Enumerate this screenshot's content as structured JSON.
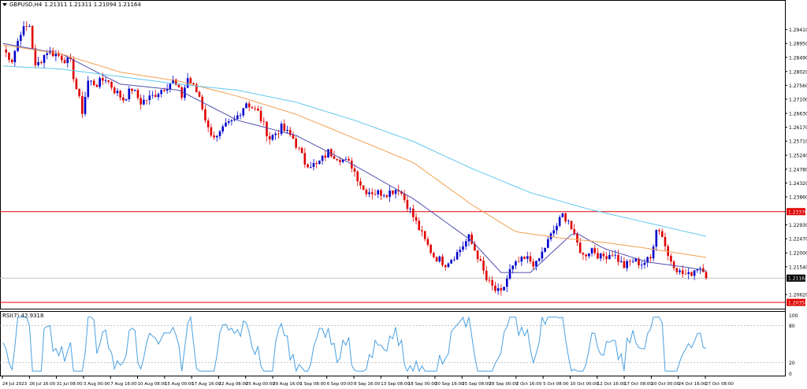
{
  "header": {
    "symbol": "GBPUSD,H4",
    "ohlc": "1.21311 1.21311 1.21094 1.21164"
  },
  "indicator": {
    "label": "RSI(7) 42.9318"
  },
  "price_axis": {
    "ticks": [
      "1.30340",
      "1.29410",
      "1.28950",
      "1.28490",
      "1.28020",
      "1.27560",
      "1.27100",
      "1.26630",
      "1.26170",
      "1.25710",
      "1.25240",
      "1.24780",
      "1.24320",
      "1.23860",
      "1.22930",
      "1.22470",
      "1.22000",
      "1.21540",
      "1.20620",
      "1.20150"
    ]
  },
  "price_markers": {
    "resistance": "1.23370",
    "current": "1.21164",
    "support": "1.20358"
  },
  "rsi_axis": {
    "ticks": [
      "100",
      "80",
      "20",
      "0"
    ]
  },
  "time_axis": {
    "labels": [
      "24 Jul 2023",
      "26 Jul 16:00",
      "31 Jul 08:00",
      "3 Aug 00:00",
      "7 Aug 16:00",
      "10 Aug 08:00",
      "15 Aug 00:00",
      "17 Aug 16:00",
      "22 Aug 08:00",
      "25 Aug 00:00",
      "29 Aug 16:00",
      "1 Sep 08:00",
      "6 Sep 00:00",
      "8 Sep 16:00",
      "13 Sep 08:00",
      "18 Sep 00:00",
      "20 Sep 16:00",
      "25 Sep 08:00",
      "28 Sep 00:00",
      "2 Oct 16:00",
      "5 Oct 08:00",
      "10 Oct 00:00",
      "12 Oct 16:00",
      "17 Oct 08:00",
      "20 Oct 00:00",
      "24 Oct 16:00",
      "27 Oct 08:00"
    ]
  },
  "colors": {
    "bull": "#0000cc",
    "bear": "#e00000",
    "ma_fast": "#5050b0",
    "ma_mid": "#f0a050",
    "ma_slow": "#60c8f0",
    "rsi": "#4aa0e0",
    "level_line": "#e00000",
    "current_line": "#c0c0c0"
  },
  "chart_data": {
    "type": "candlestick",
    "symbol": "GBPUSD",
    "timeframe": "H4",
    "ylim": [
      1.2015,
      1.3034
    ],
    "horizontal_levels": [
      1.2337,
      1.20358
    ],
    "current_price": 1.21164,
    "close_path": [
      [
        0,
        1.2875
      ],
      [
        3,
        1.284
      ],
      [
        6,
        1.2935
      ],
      [
        9,
        1.2955
      ],
      [
        11,
        1.2815
      ],
      [
        15,
        1.287
      ],
      [
        19,
        1.2855
      ],
      [
        23,
        1.283
      ],
      [
        25,
        1.2745
      ],
      [
        27,
        1.267
      ],
      [
        29,
        1.277
      ],
      [
        32,
        1.276
      ],
      [
        35,
        1.278
      ],
      [
        38,
        1.274
      ],
      [
        41,
        1.271
      ],
      [
        44,
        1.2745
      ],
      [
        47,
        1.27
      ],
      [
        51,
        1.272
      ],
      [
        55,
        1.275
      ],
      [
        58,
        1.277
      ],
      [
        61,
        1.272
      ],
      [
        63,
        1.278
      ],
      [
        67,
        1.272
      ],
      [
        70,
        1.261
      ],
      [
        73,
        1.258
      ],
      [
        76,
        1.262
      ],
      [
        79,
        1.264
      ],
      [
        83,
        1.27
      ],
      [
        87,
        1.2665
      ],
      [
        91,
        1.258
      ],
      [
        95,
        1.2615
      ],
      [
        99,
        1.258
      ],
      [
        103,
        1.25
      ],
      [
        107,
        1.249
      ],
      [
        111,
        1.2535
      ],
      [
        115,
        1.2515
      ],
      [
        119,
        1.249
      ],
      [
        123,
        1.241
      ],
      [
        127,
        1.24
      ],
      [
        131,
        1.24
      ],
      [
        135,
        1.2415
      ],
      [
        138,
        1.236
      ],
      [
        141,
        1.23
      ],
      [
        144,
        1.224
      ],
      [
        147,
        1.219
      ],
      [
        151,
        1.2165
      ],
      [
        155,
        1.22
      ],
      [
        159,
        1.225
      ],
      [
        162,
        1.219
      ],
      [
        165,
        1.211
      ],
      [
        168,
        1.2075
      ],
      [
        170,
        1.2065
      ],
      [
        173,
        1.214
      ],
      [
        176,
        1.217
      ],
      [
        179,
        1.218
      ],
      [
        182,
        1.216
      ],
      [
        185,
        1.222
      ],
      [
        188,
        1.2275
      ],
      [
        191,
        1.2325
      ],
      [
        193,
        1.231
      ],
      [
        195,
        1.225
      ],
      [
        198,
        1.219
      ],
      [
        201,
        1.2215
      ],
      [
        204,
        1.2185
      ],
      [
        208,
        1.22
      ],
      [
        212,
        1.2155
      ],
      [
        215,
        1.2175
      ],
      [
        218,
        1.2165
      ],
      [
        221,
        1.218
      ],
      [
        223,
        1.2285
      ],
      [
        225,
        1.226
      ],
      [
        227,
        1.219
      ],
      [
        231,
        1.2135
      ],
      [
        234,
        1.2125
      ],
      [
        237,
        1.2155
      ],
      [
        239,
        1.215
      ],
      [
        240,
        1.2116
      ]
    ],
    "moving_averages": [
      {
        "path": [
          [
            0,
            1.2895
          ],
          [
            20,
            1.286
          ],
          [
            40,
            1.276
          ],
          [
            60,
            1.274
          ],
          [
            80,
            1.264
          ],
          [
            100,
            1.259
          ],
          [
            120,
            1.249
          ],
          [
            140,
            1.238
          ],
          [
            160,
            1.224
          ],
          [
            170,
            1.2135
          ],
          [
            180,
            1.2135
          ],
          [
            195,
            1.227
          ],
          [
            205,
            1.2215
          ],
          [
            220,
            1.217
          ],
          [
            235,
            1.215
          ],
          [
            240,
            1.214
          ]
        ]
      },
      {
        "path": [
          [
            0,
            1.289
          ],
          [
            20,
            1.286
          ],
          [
            40,
            1.28
          ],
          [
            60,
            1.277
          ],
          [
            80,
            1.272
          ],
          [
            100,
            1.266
          ],
          [
            120,
            1.258
          ],
          [
            140,
            1.25
          ],
          [
            160,
            1.236
          ],
          [
            175,
            1.227
          ],
          [
            190,
            1.225
          ],
          [
            205,
            1.2235
          ],
          [
            220,
            1.2215
          ],
          [
            240,
            1.2185
          ]
        ]
      },
      {
        "path": [
          [
            0,
            1.282
          ],
          [
            20,
            1.281
          ],
          [
            40,
            1.2785
          ],
          [
            60,
            1.276
          ],
          [
            80,
            1.274
          ],
          [
            100,
            1.27
          ],
          [
            120,
            1.264
          ],
          [
            140,
            1.257
          ],
          [
            160,
            1.248
          ],
          [
            180,
            1.24
          ],
          [
            200,
            1.2345
          ],
          [
            220,
            1.23
          ],
          [
            240,
            1.2255
          ]
        ]
      }
    ],
    "rsi": {
      "name": "RSI(7)",
      "last": 42.9318,
      "ylim": [
        0,
        100
      ],
      "levels": [
        80,
        20
      ]
    }
  }
}
